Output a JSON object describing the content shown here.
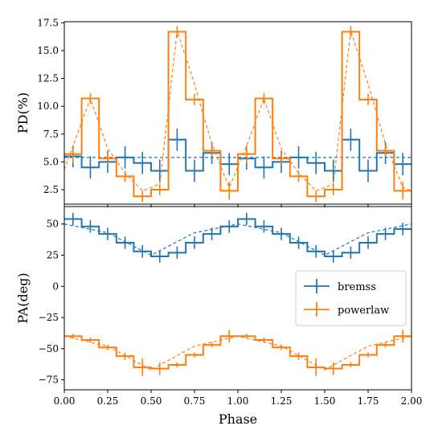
{
  "chart_data": [
    {
      "type": "line",
      "panel": "top",
      "ylabel": "PD(%)",
      "xlim": [
        0,
        2
      ],
      "ylim": [
        1.2,
        17.6
      ],
      "yticks": [
        2.5,
        5.0,
        7.5,
        10.0,
        12.5,
        15.0,
        17.5
      ],
      "yticklabels": [
        "2.5",
        "5.0",
        "7.5",
        "10.0",
        "12.5",
        "15.0",
        "17.5"
      ],
      "colors": {
        "bremss": "#1f77b4",
        "powerlaw": "#ff7f0e"
      },
      "step_edges": [
        0,
        0.1,
        0.2,
        0.3,
        0.4,
        0.5,
        0.6,
        0.7,
        0.8,
        0.9,
        1.0,
        1.1,
        1.2,
        1.3,
        1.4,
        1.5,
        1.6,
        1.7,
        1.8,
        1.9,
        2.0
      ],
      "series": [
        {
          "name": "bremss",
          "x": [
            0.05,
            0.15,
            0.25,
            0.35,
            0.45,
            0.55,
            0.65,
            0.75,
            0.85,
            0.95,
            1.05,
            1.15,
            1.25,
            1.35,
            1.45,
            1.55,
            1.65,
            1.75,
            1.85,
            1.95
          ],
          "y": [
            5.5,
            4.5,
            5.0,
            5.4,
            4.9,
            4.2,
            7.0,
            4.2,
            5.8,
            4.8,
            5.3,
            4.5,
            5.0,
            5.4,
            4.9,
            4.2,
            7.0,
            4.2,
            5.8,
            4.8
          ],
          "yerr": [
            1.0,
            1.0,
            1.0,
            1.0,
            1.0,
            1.0,
            1.0,
            1.0,
            1.0,
            1.0,
            1.0,
            1.0,
            1.0,
            1.0,
            1.0,
            1.0,
            1.0,
            1.0,
            1.0,
            1.0
          ],
          "model_y": 5.4
        },
        {
          "name": "powerlaw",
          "x": [
            0.05,
            0.15,
            0.25,
            0.35,
            0.45,
            0.55,
            0.65,
            0.75,
            0.85,
            0.95,
            1.05,
            1.15,
            1.25,
            1.35,
            1.45,
            1.55,
            1.65,
            1.75,
            1.85,
            1.95
          ],
          "y": [
            5.7,
            10.7,
            5.3,
            3.7,
            1.9,
            2.5,
            16.7,
            10.6,
            6.0,
            2.4,
            5.7,
            10.7,
            5.3,
            3.7,
            1.9,
            2.5,
            16.7,
            10.6,
            6.0,
            2.4
          ],
          "yerr": [
            0.8,
            0.5,
            0.5,
            0.5,
            0.5,
            0.5,
            0.5,
            0.5,
            0.5,
            0.8,
            0.8,
            0.5,
            0.5,
            0.5,
            0.5,
            0.5,
            0.5,
            0.5,
            0.5,
            0.8
          ],
          "model_x": [
            0.0,
            0.05,
            0.15,
            0.25,
            0.35,
            0.45,
            0.55,
            0.65,
            0.75,
            0.85,
            0.95,
            1.05,
            1.15,
            1.25,
            1.35,
            1.45,
            1.55,
            1.65,
            1.75,
            1.85,
            1.95,
            2.0
          ],
          "model_y": [
            4.3,
            6.4,
            10.7,
            6.2,
            4.0,
            2.4,
            3.0,
            16.8,
            12.0,
            6.6,
            2.7,
            6.4,
            10.7,
            6.2,
            4.0,
            2.4,
            3.0,
            16.8,
            12.0,
            6.6,
            2.7,
            2.4
          ]
        }
      ]
    },
    {
      "type": "line",
      "panel": "bottom",
      "xlabel": "Phase",
      "ylabel": "PA(deg)",
      "xlim": [
        0,
        2
      ],
      "ylim": [
        -83,
        64
      ],
      "xticks": [
        0.0,
        0.25,
        0.5,
        0.75,
        1.0,
        1.25,
        1.5,
        1.75,
        2.0
      ],
      "xticklabels": [
        "0.00",
        "0.25",
        "0.50",
        "0.75",
        "1.00",
        "1.25",
        "1.50",
        "1.75",
        "2.00"
      ],
      "yticks": [
        -75,
        -50,
        -25,
        0,
        25,
        50
      ],
      "yticklabels": [
        "−75",
        "−50",
        "−25",
        "0",
        "25",
        "50"
      ],
      "legend": {
        "position": "center-right",
        "entries": [
          "bremss",
          "powerlaw"
        ]
      },
      "step_edges": [
        0,
        0.1,
        0.2,
        0.3,
        0.4,
        0.5,
        0.6,
        0.7,
        0.8,
        0.9,
        1.0,
        1.1,
        1.2,
        1.3,
        1.4,
        1.5,
        1.6,
        1.7,
        1.8,
        1.9,
        2.0
      ],
      "series": [
        {
          "name": "bremss",
          "x": [
            0.05,
            0.15,
            0.25,
            0.35,
            0.45,
            0.55,
            0.65,
            0.75,
            0.85,
            0.95,
            1.05,
            1.15,
            1.25,
            1.35,
            1.45,
            1.55,
            1.65,
            1.75,
            1.85,
            1.95
          ],
          "y": [
            54,
            48,
            42,
            35,
            28,
            24,
            27,
            35,
            42,
            48,
            54,
            48,
            42,
            35,
            28,
            24,
            27,
            35,
            42,
            46
          ],
          "yerr": [
            5,
            5,
            5,
            5,
            5,
            5,
            5,
            5,
            5,
            5,
            5,
            5,
            5,
            5,
            5,
            5,
            5,
            5,
            5,
            5
          ],
          "model_x": [
            0.0,
            0.25,
            0.5,
            0.75,
            1.0,
            1.25,
            1.5,
            1.75,
            2.0
          ],
          "model_y": [
            50,
            43,
            25,
            43,
            50,
            43,
            25,
            43,
            50
          ]
        },
        {
          "name": "powerlaw",
          "x": [
            0.05,
            0.15,
            0.25,
            0.35,
            0.45,
            0.55,
            0.65,
            0.75,
            0.85,
            0.95,
            1.05,
            1.15,
            1.25,
            1.35,
            1.45,
            1.55,
            1.65,
            1.75,
            1.85,
            1.95
          ],
          "y": [
            -40,
            -43,
            -49,
            -56,
            -65,
            -66,
            -63,
            -55,
            -47,
            -40,
            -40,
            -43,
            -49,
            -56,
            -65,
            -66,
            -63,
            -55,
            -47,
            -40
          ],
          "yerr": [
            2,
            2,
            2,
            3,
            7,
            5,
            2,
            2,
            2,
            5,
            2,
            2,
            2,
            3,
            7,
            5,
            2,
            2,
            2,
            5
          ],
          "model_x": [
            0.0,
            0.25,
            0.5,
            0.75,
            1.0,
            1.25,
            1.5,
            1.75,
            2.0
          ],
          "model_y": [
            -40,
            -48,
            -67,
            -48,
            -40,
            -48,
            -67,
            -48,
            -40
          ]
        }
      ]
    }
  ]
}
